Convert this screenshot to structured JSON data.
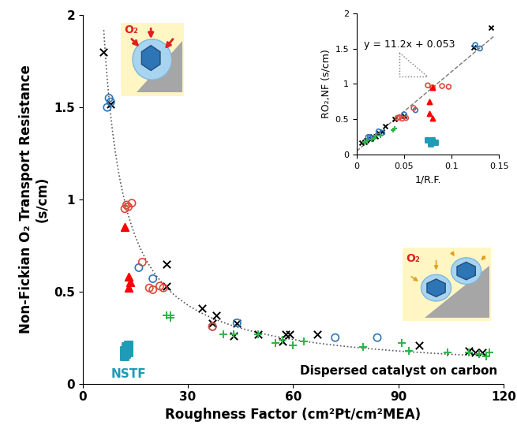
{
  "chart_data": [
    {
      "type": "scatter",
      "xlabel": "Roughness Factor (cm²Pt/cm²MEA)",
      "ylabel": "Non-Fickian O₂ Transport Resistance\n(s/cm)",
      "xlim": [
        0,
        120
      ],
      "xticks": [
        0,
        30,
        60,
        90,
        120
      ],
      "ylim": [
        0,
        2
      ],
      "yticks": [
        0,
        0.5,
        1,
        1.5,
        2
      ],
      "annotations": [
        "NSTF",
        "Dispersed catalyst on carbon",
        "O₂",
        "O₂"
      ],
      "fit": {
        "slope": 11.2,
        "intercept": 0.053,
        "x": [
          6,
          116
        ]
      },
      "series": [
        {
          "color": "#000000",
          "marker": "x",
          "x": [
            6,
            8,
            24,
            24,
            34,
            37,
            38,
            43,
            44,
            50,
            57,
            58,
            59,
            67,
            96,
            110,
            112,
            114
          ],
          "values": [
            1.8,
            1.52,
            0.65,
            0.53,
            0.41,
            0.33,
            0.37,
            0.26,
            0.33,
            0.27,
            0.23,
            0.27,
            0.27,
            0.27,
            0.21,
            0.18,
            0.17,
            0.17
          ]
        },
        {
          "color": "#2e75b6",
          "marker": "circle_open",
          "x": [
            7,
            7.5,
            8,
            16,
            20,
            37,
            44,
            72,
            84
          ],
          "values": [
            1.5,
            1.55,
            1.53,
            0.63,
            0.57,
            0.31,
            0.33,
            0.25,
            0.25
          ]
        },
        {
          "color": "#e0473a",
          "marker": "circle_open",
          "x": [
            12,
            12.5,
            13,
            14,
            17,
            19,
            20,
            22,
            23,
            37
          ],
          "values": [
            0.95,
            0.97,
            0.96,
            0.98,
            0.66,
            0.52,
            0.51,
            0.53,
            0.52,
            0.31
          ]
        },
        {
          "color": "#ff0000",
          "marker": "triangle",
          "x": [
            12,
            13,
            13,
            13.5
          ],
          "values": [
            0.85,
            0.58,
            0.52,
            0.55
          ]
        },
        {
          "color": "#2db34a",
          "marker": "plus",
          "x": [
            24,
            25,
            25,
            40,
            43,
            50,
            55,
            57,
            60,
            63,
            80,
            91,
            93,
            104,
            110,
            113,
            115,
            116
          ],
          "values": [
            0.37,
            0.36,
            0.37,
            0.27,
            0.27,
            0.27,
            0.22,
            0.24,
            0.21,
            0.23,
            0.2,
            0.22,
            0.18,
            0.17,
            0.17,
            0.16,
            0.15,
            0.17
          ]
        },
        {
          "color": "#1f9bb5",
          "marker": "square",
          "x": [
            12,
            12,
            12.5,
            13,
            13,
            12.5
          ],
          "values": [
            0.15,
            0.18,
            0.2,
            0.17,
            0.21,
            0.16
          ]
        }
      ]
    },
    {
      "type": "scatter",
      "xlabel": "1/R.F.",
      "ylabel": "RO₂,NF (s/cm)",
      "xlim": [
        0,
        0.15
      ],
      "xticks": [
        0,
        0.05,
        0.1,
        0.15
      ],
      "ylim": [
        0,
        2
      ],
      "yticks": [
        0,
        0.5,
        1,
        1.5,
        2
      ],
      "annotations": [
        "y = 11.2x + 0.053"
      ],
      "fit": {
        "slope": 11.2,
        "intercept": 0.053,
        "x": [
          0,
          0.145
        ]
      },
      "series": [
        {
          "color": "#000000",
          "marker": "x",
          "x": [
            0.142,
            0.123,
            0.05,
            0.04,
            0.03,
            0.027,
            0.023,
            0.02,
            0.017,
            0.015,
            0.01,
            0.008,
            0.005
          ],
          "values": [
            1.8,
            1.52,
            0.55,
            0.5,
            0.4,
            0.33,
            0.3,
            0.26,
            0.26,
            0.23,
            0.2,
            0.18,
            0.17
          ]
        },
        {
          "color": "#2e75b6",
          "marker": "circle_open",
          "x": [
            0.13,
            0.125,
            0.062,
            0.05,
            0.027,
            0.023,
            0.014,
            0.012
          ],
          "values": [
            1.5,
            1.55,
            0.63,
            0.57,
            0.31,
            0.33,
            0.25,
            0.25
          ]
        },
        {
          "color": "#e0473a",
          "marker": "circle_open",
          "x": [
            0.08,
            0.09,
            0.097,
            0.075,
            0.06,
            0.052,
            0.048,
            0.045,
            0.043
          ],
          "values": [
            0.95,
            0.97,
            0.96,
            0.98,
            0.66,
            0.52,
            0.51,
            0.53,
            0.52
          ]
        },
        {
          "color": "#ff0000",
          "marker": "triangle",
          "x": [
            0.08,
            0.077,
            0.077,
            0.08
          ],
          "values": [
            0.95,
            0.75,
            0.58,
            0.52
          ]
        },
        {
          "color": "#2db34a",
          "marker": "plus",
          "x": [
            0.04,
            0.038,
            0.025,
            0.02,
            0.018,
            0.016,
            0.011,
            0.009,
            0.008
          ],
          "values": [
            0.37,
            0.35,
            0.27,
            0.27,
            0.24,
            0.22,
            0.2,
            0.18,
            0.17
          ]
        },
        {
          "color": "#1f9bb5",
          "marker": "square",
          "x": [
            0.075,
            0.078,
            0.08,
            0.083,
            0.08
          ],
          "values": [
            0.2,
            0.15,
            0.18,
            0.17,
            0.2
          ]
        }
      ]
    }
  ]
}
